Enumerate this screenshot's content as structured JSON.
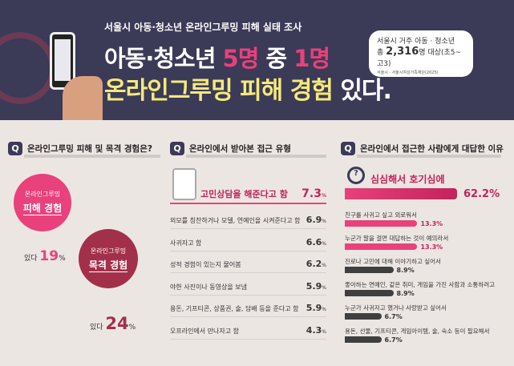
{
  "header": {
    "subtitle": "서울시 아동·청소년 온라인그루밍 피해 실태 조사",
    "title1_a": "아동·청소년 ",
    "title1_b": "5명",
    "title1_c": " 중 ",
    "title1_d": "1명",
    "title2_a": "온라인그루밍 피해 경험",
    "title2_b": " 있다.",
    "bubble": {
      "line1": "서울시 거주 아동 · 청소년",
      "line2_a": "총 ",
      "line2_b": "2,316",
      "line2_c": "명 대상(초5~고3)",
      "source": "서울시 · 서울시여성가족재단(2025)"
    }
  },
  "q1": {
    "badge": "Q",
    "title": "온라인그루밍 피해 및 목격 경험은?",
    "circles": [
      {
        "small": "온라인그루밍",
        "label": "피해 경험",
        "prefix": "있다 ",
        "value": "19",
        "unit": "%"
      },
      {
        "small": "온라인그루밍",
        "label": "목격 경험",
        "prefix": "있다 ",
        "value": "24",
        "unit": "%"
      }
    ]
  },
  "q2": {
    "badge": "Q",
    "title": "온라인에서 받아본 접근 유형",
    "top": {
      "label": "고민상담을 해준다고 함",
      "value": "7.3",
      "unit": "%"
    },
    "items": [
      {
        "label": "외모를 칭찬하거나 모델, 연예인을 시켜준다고 함",
        "value": "6.9",
        "unit": "%"
      },
      {
        "label": "사귀자고 함",
        "value": "6.6",
        "unit": "%"
      },
      {
        "label": "성적 경험이 있는지 물어봄",
        "value": "6.2",
        "unit": "%"
      },
      {
        "label": "야한 사진이나 동영상을 보냄",
        "value": "5.9",
        "unit": "%"
      },
      {
        "label": "용돈, 기프티콘, 상품권, 술, 담배 등을 준다고 함",
        "value": "5.9",
        "unit": "%"
      },
      {
        "label": "오프라인에서 만나자고 함",
        "value": "4.3",
        "unit": "%"
      }
    ]
  },
  "q3": {
    "badge": "Q",
    "title": "온라인에서 접근한 사람에게 대답한 이유",
    "top": {
      "label": "심심해서 호기심에",
      "value": "62.2%"
    },
    "items": [
      {
        "label": "친구를 사귀고 싶고 외로워서",
        "value": "13.3%",
        "color": "#e8417b"
      },
      {
        "label": "누군가 말을 걸면 대답하는 것이 예의라서",
        "value": "13.3%",
        "color": "#e8417b"
      },
      {
        "label": "진로나 고민에 대해 이야기하고 싶어서",
        "value": "8.9%",
        "color": "#3f3f3f"
      },
      {
        "label": "좋아하는 연예인, 같은 취미, 게임을 가진 사람과 소통하려고",
        "value": "8.9%",
        "color": "#3f3f3f"
      },
      {
        "label": "누군가 사귀자고 했거나 사랑받고 싶어서",
        "value": "6.7%",
        "color": "#3f3f3f"
      },
      {
        "label": "용돈, 선물, 기프티콘, 게임아이템, 술, 숙소 등이 필요해서",
        "value": "6.7%",
        "color": "#3f3f3f"
      }
    ]
  },
  "colors": {
    "navy": "#3b3a57",
    "pink": "#e8417b",
    "wine": "#a3304a",
    "yellow": "#f5e97c"
  }
}
